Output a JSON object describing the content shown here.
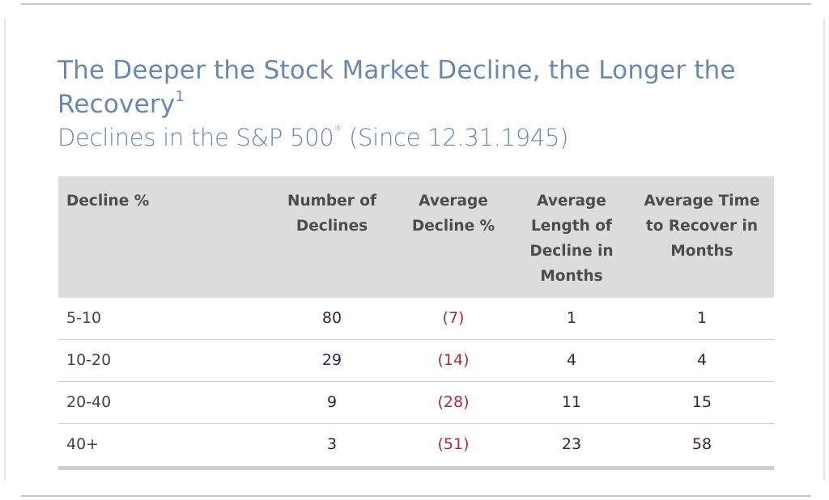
{
  "title": {
    "line": "The Deeper the Stock Market Decline, the Longer the Recovery",
    "footnote_marker": "1"
  },
  "subtitle": {
    "text_before": "Declines in the S&P 500",
    "registered_mark": "®",
    "text_after": " (Since 12.31.1945)"
  },
  "colors": {
    "title": "#6a88ad",
    "header_bg": "#dcdcdc",
    "value_text": "#3a1f3e",
    "negative_text": "#a3303a"
  },
  "chart_data": {
    "type": "table",
    "columns": [
      "Decline %",
      "Number of Declines",
      "Average Decline %",
      "Average Length of Decline in Months",
      "Average Time to Recover in Months"
    ],
    "rows": [
      [
        "5-10",
        "80",
        "(7)",
        "1",
        "1"
      ],
      [
        "10-20",
        "29",
        "(14)",
        "4",
        "4"
      ],
      [
        "20-40",
        "9",
        "(28)",
        "11",
        "15"
      ],
      [
        "40+",
        "3",
        "(51)",
        "23",
        "58"
      ]
    ]
  }
}
